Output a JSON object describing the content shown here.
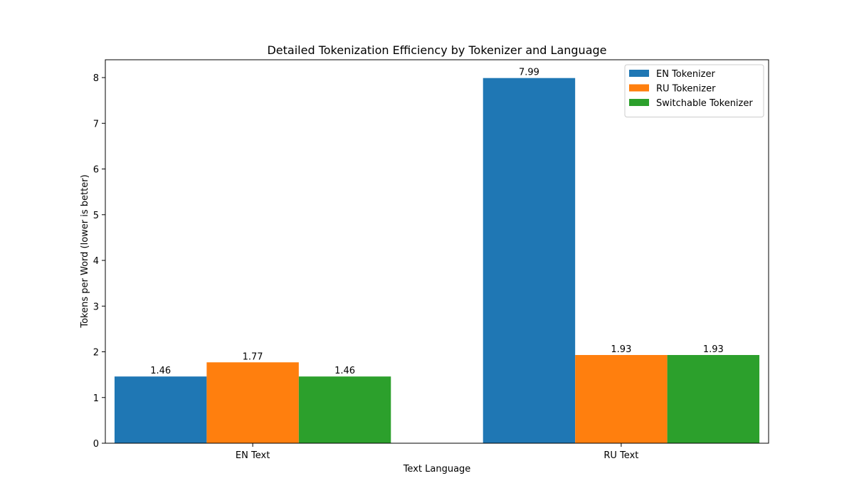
{
  "chart_data": {
    "type": "bar",
    "title": "Detailed Tokenization Efficiency by Tokenizer and Language",
    "xlabel": "Text Language",
    "ylabel": "Tokens per Word (lower is better)",
    "categories": [
      "EN Text",
      "RU Text"
    ],
    "series": [
      {
        "name": "EN Tokenizer",
        "values": [
          1.46,
          7.99
        ],
        "labels": [
          "1.46",
          "7.99"
        ],
        "color": "#1f77b4"
      },
      {
        "name": "RU Tokenizer",
        "values": [
          1.77,
          1.93
        ],
        "labels": [
          "1.77",
          "1.93"
        ],
        "color": "#ff7f0e"
      },
      {
        "name": "Switchable Tokenizer",
        "values": [
          1.46,
          1.93
        ],
        "labels": [
          "1.46",
          "1.93"
        ],
        "color": "#2ca02c"
      }
    ],
    "ylim": [
      0,
      8.39
    ],
    "yticks": [
      0,
      1,
      2,
      3,
      4,
      5,
      6,
      7,
      8
    ],
    "ytick_labels": [
      "0",
      "1",
      "2",
      "3",
      "4",
      "5",
      "6",
      "7",
      "8"
    ],
    "grid": false,
    "legend_position": "top-right"
  }
}
